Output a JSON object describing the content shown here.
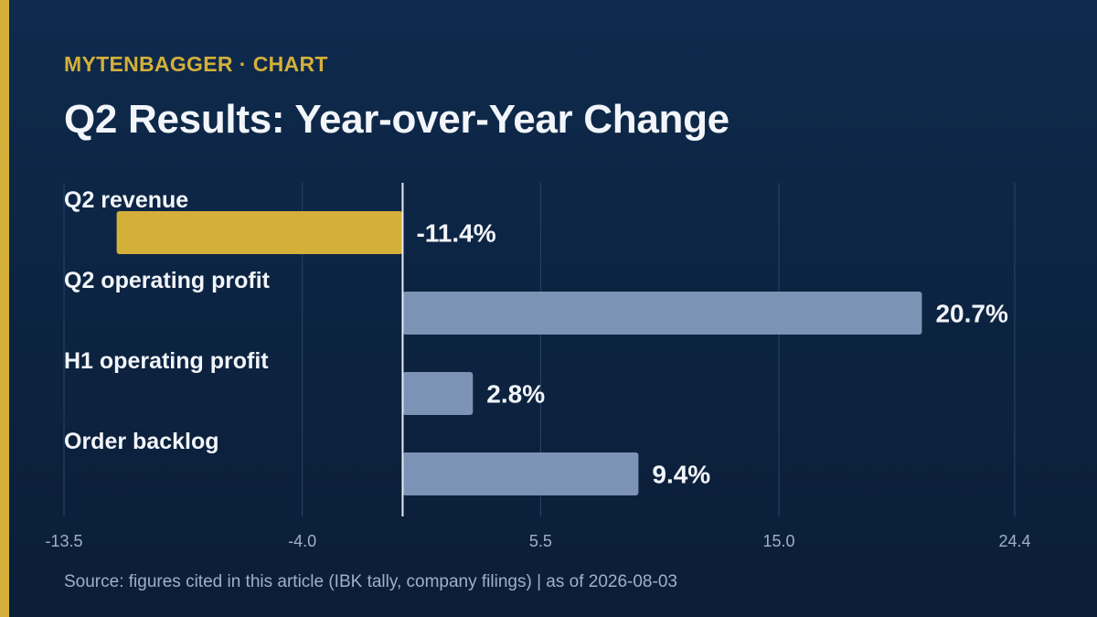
{
  "brand": "MYTENBAGGER",
  "separator": "·",
  "section": "CHART",
  "title": "Q2 Results: Year-over-Year Change",
  "source": "Source: figures cited in this article (IBK tally, company filings) | as of 2026-08-03",
  "colors": {
    "background": "#0c2340",
    "accent": "#d4b03a",
    "negative_bar": "#d4b03a",
    "positive_bar": "#7d93b5",
    "text": "#f2f5fa",
    "muted_text": "#9fb0c8",
    "grid": "#2a4566",
    "zero_line": "#e6ecf4"
  },
  "chart_data": {
    "type": "bar",
    "orientation": "horizontal",
    "categories": [
      "Q2 revenue",
      "Q2 operating profit",
      "H1 operating profit",
      "Order backlog"
    ],
    "values": [
      -11.4,
      20.7,
      2.8,
      9.4
    ],
    "value_labels": [
      "-11.4%",
      "20.7%",
      "2.8%",
      "9.4%"
    ],
    "xlim": [
      -13.5,
      24.4
    ],
    "xticks": [
      -13.5,
      -4.0,
      5.5,
      15.0,
      24.4
    ],
    "xtick_labels": [
      "-13.5",
      "-4.0",
      "5.5",
      "15.0",
      "24.4"
    ],
    "grid": true,
    "unit": "%"
  }
}
